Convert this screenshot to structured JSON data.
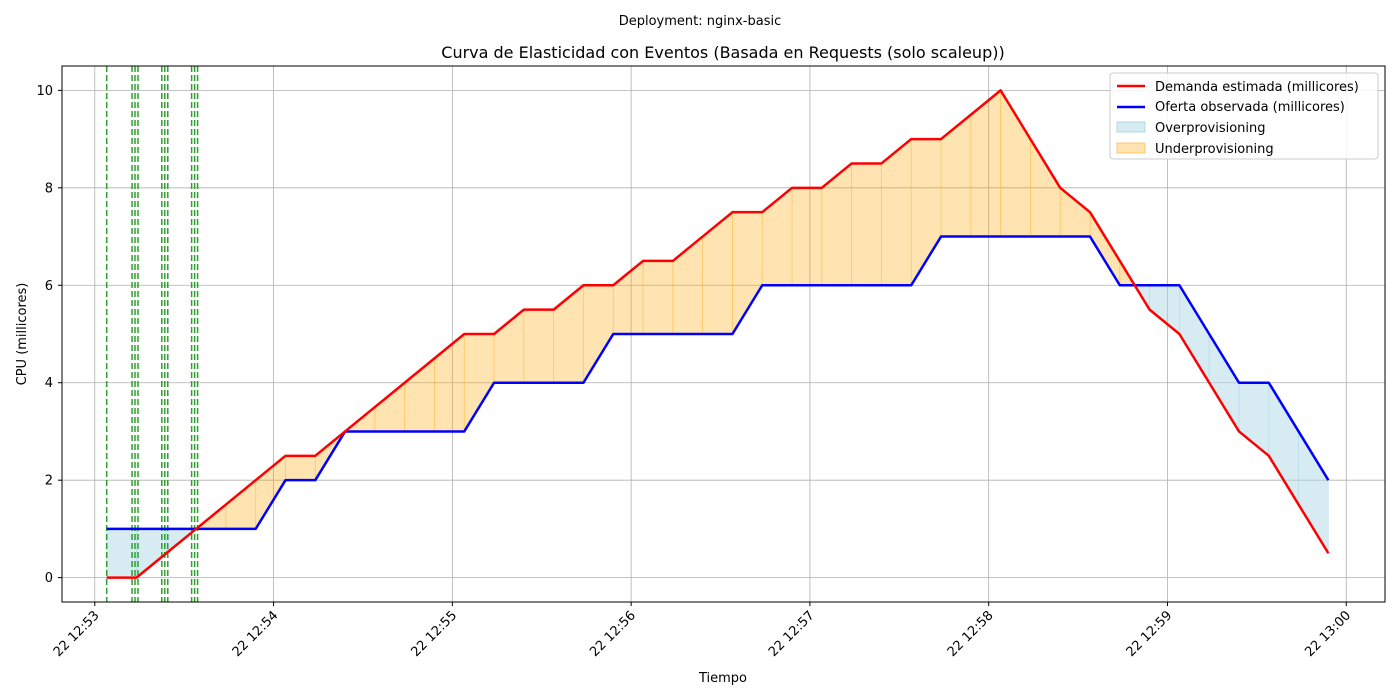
{
  "figure": {
    "suptitle": "Deployment: nginx-basic"
  },
  "chart_data": {
    "type": "line",
    "title": "Curva de Elasticidad con Eventos (Basada en Requests (solo scaleup))",
    "xlabel": "Tiempo",
    "ylabel": "CPU (millicores)",
    "ylim": [
      -0.5,
      10.5
    ],
    "xlim": [
      "22 12:52:49",
      "22 13:00:13"
    ],
    "grid": true,
    "legend_position": "top-right",
    "x_ticks": [
      "22 12:53",
      "22 12:54",
      "22 12:55",
      "22 12:56",
      "22 12:57",
      "22 12:58",
      "22 12:59",
      "22 13:00"
    ],
    "y_ticks": [
      0,
      2,
      4,
      6,
      8,
      10
    ],
    "colors": {
      "demand": "#ff0000",
      "supply": "#0000ff",
      "over": "#add8e6",
      "under": "#ffa500",
      "event": "#2ca02c",
      "grid": "#b0b0b0"
    },
    "series": [
      {
        "name": "Demanda estimada (millicores)",
        "color": "#ff0000",
        "x": [
          "22 12:53:04",
          "22 12:53:14",
          "22 12:53:24",
          "22 12:53:34",
          "22 12:53:44",
          "22 12:53:54",
          "22 12:54:04",
          "22 12:54:14",
          "22 12:54:24",
          "22 12:54:34",
          "22 12:54:44",
          "22 12:54:54",
          "22 12:55:04",
          "22 12:55:14",
          "22 12:55:24",
          "22 12:55:34",
          "22 12:55:44",
          "22 12:55:54",
          "22 12:56:04",
          "22 12:56:14",
          "22 12:56:24",
          "22 12:56:34",
          "22 12:56:44",
          "22 12:56:54",
          "22 12:57:04",
          "22 12:57:14",
          "22 12:57:24",
          "22 12:57:34",
          "22 12:57:44",
          "22 12:57:54",
          "22 12:58:04",
          "22 12:58:14",
          "22 12:58:24",
          "22 12:58:34",
          "22 12:58:44",
          "22 12:58:54",
          "22 12:59:04",
          "22 12:59:14",
          "22 12:59:24",
          "22 12:59:34",
          "22 12:59:44",
          "22 12:59:54"
        ],
        "values": [
          0,
          0,
          0.5,
          1,
          1.5,
          2,
          2.5,
          2.5,
          3,
          3.5,
          4,
          4.5,
          5,
          5,
          5.5,
          5.5,
          6,
          6,
          6.5,
          6.5,
          7,
          7.5,
          7.5,
          8,
          8,
          8.5,
          8.5,
          9,
          9,
          9.5,
          10,
          9,
          8,
          7.5,
          6.5,
          5.5,
          5,
          4,
          3,
          2.5,
          1.5,
          0.5
        ]
      },
      {
        "name": "Oferta observada (millicores)",
        "color": "#0000ff",
        "x": [
          "22 12:53:04",
          "22 12:53:14",
          "22 12:53:24",
          "22 12:53:34",
          "22 12:53:44",
          "22 12:53:54",
          "22 12:54:04",
          "22 12:54:14",
          "22 12:54:24",
          "22 12:54:34",
          "22 12:54:44",
          "22 12:54:54",
          "22 12:55:04",
          "22 12:55:14",
          "22 12:55:24",
          "22 12:55:34",
          "22 12:55:44",
          "22 12:55:54",
          "22 12:56:04",
          "22 12:56:14",
          "22 12:56:24",
          "22 12:56:34",
          "22 12:56:44",
          "22 12:56:54",
          "22 12:57:04",
          "22 12:57:14",
          "22 12:57:24",
          "22 12:57:34",
          "22 12:57:44",
          "22 12:57:54",
          "22 12:58:04",
          "22 12:58:14",
          "22 12:58:24",
          "22 12:58:34",
          "22 12:58:44",
          "22 12:58:54",
          "22 12:59:04",
          "22 12:59:14",
          "22 12:59:24",
          "22 12:59:34",
          "22 12:59:44",
          "22 12:59:54"
        ],
        "values": [
          1,
          1,
          1,
          1,
          1,
          1,
          2,
          2,
          3,
          3,
          3,
          3,
          3,
          4,
          4,
          4,
          4,
          5,
          5,
          5,
          5,
          5,
          6,
          6,
          6,
          6,
          6,
          6,
          7,
          7,
          7,
          7,
          7,
          7,
          6,
          6,
          6,
          5,
          4,
          4,
          3,
          2
        ]
      }
    ],
    "fills": [
      {
        "name": "Overprovisioning",
        "color": "#add8e6",
        "condition": "supply > demand"
      },
      {
        "name": "Underprovisioning",
        "color": "#ffa500",
        "condition": "demand > supply"
      }
    ],
    "event_lines": [
      "22 12:53:04",
      "22 12:53:12.5",
      "22 12:53:13.5",
      "22 12:53:14.5",
      "22 12:53:22.5",
      "22 12:53:23.5",
      "22 12:53:24.5",
      "22 12:53:32.5",
      "22 12:53:33.5",
      "22 12:53:34.5"
    ]
  }
}
